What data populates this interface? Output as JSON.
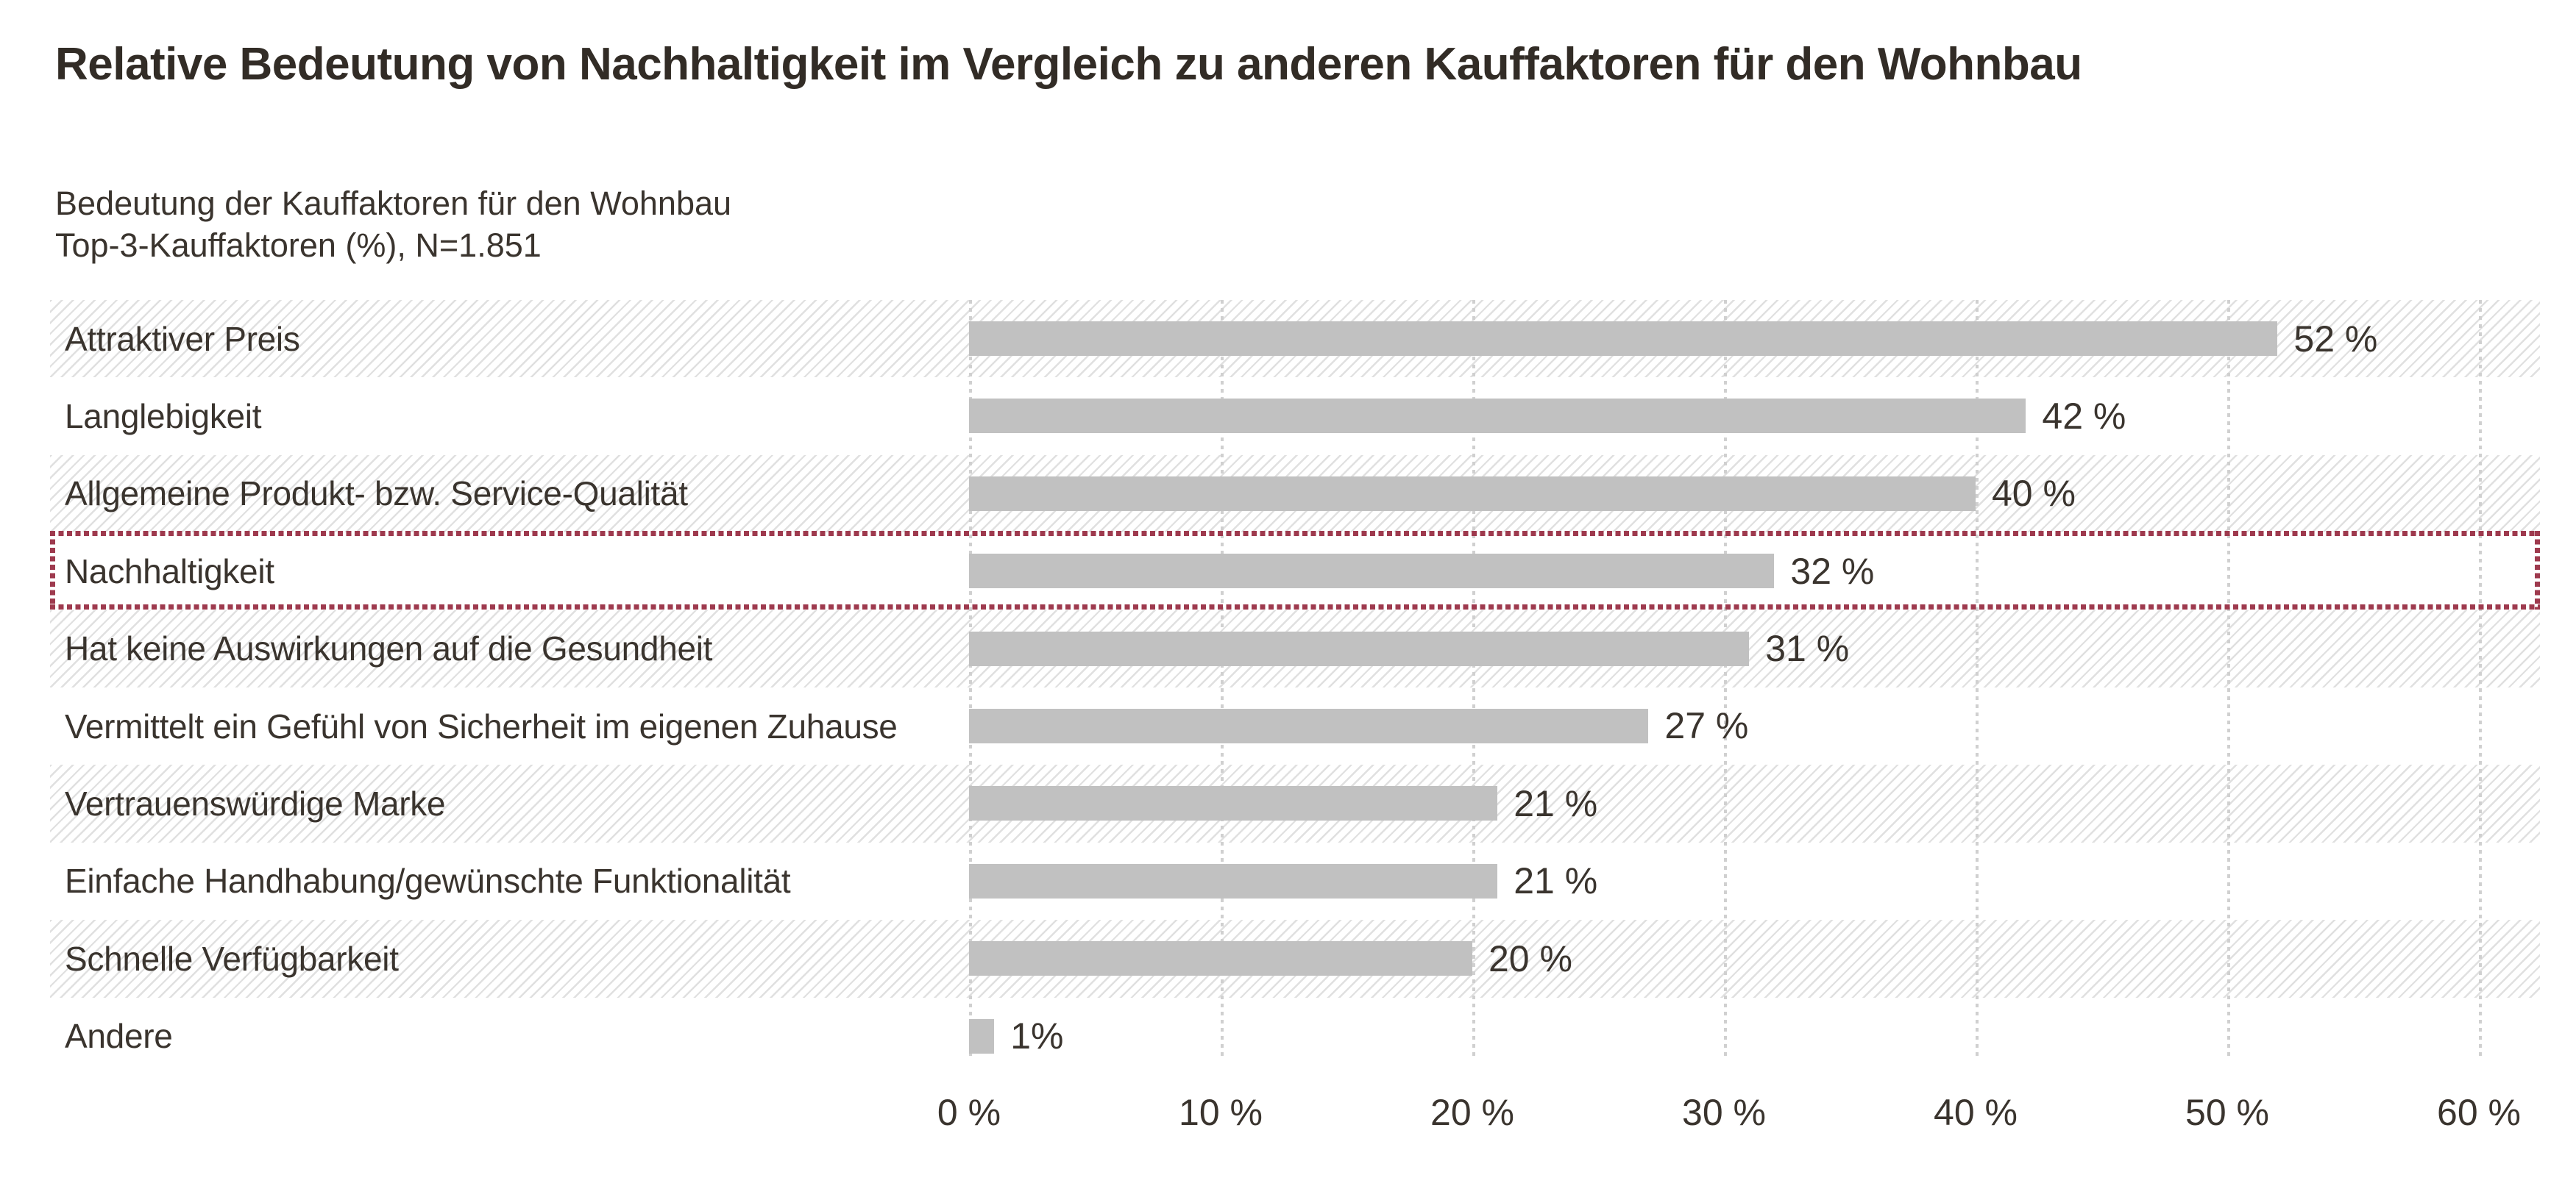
{
  "title": "Relative Bedeutung von Nachhaltigkeit im Vergleich zu anderen Kauffaktoren für den Wohnbau",
  "subtitle_line1": "Bedeutung der Kauffaktoren für den Wohnbau",
  "subtitle_line2": "Top-3-Kauffaktoren (%), N=1.851",
  "chart_data": {
    "type": "bar",
    "orientation": "horizontal",
    "categories": [
      "Attraktiver Preis",
      "Langlebigkeit",
      "Allgemeine Produkt- bzw. Service-Qualität",
      "Nachhaltigkeit",
      "Hat keine Auswirkungen auf die Gesundheit",
      "Vermittelt ein Gefühl von Sicherheit im eigenen Zuhause",
      "Vertrauenswürdige Marke",
      "Einfache Handhabung/gewünschte Funktionalität",
      "Schnelle Verfügbarkeit",
      "Andere"
    ],
    "values": [
      52,
      42,
      40,
      32,
      31,
      27,
      21,
      21,
      20,
      1
    ],
    "value_labels": [
      "52 %",
      "42 %",
      "40 %",
      "32 %",
      "31 %",
      "27 %",
      "21 %",
      "21 %",
      "20 %",
      "1%"
    ],
    "xticks": [
      0,
      10,
      20,
      30,
      40,
      50,
      60
    ],
    "xtick_labels": [
      "0 %",
      "10 %",
      "20 %",
      "30 %",
      "40 %",
      "50 %",
      "60 %"
    ],
    "xlim": [
      0,
      60
    ],
    "grid": "vertical-dotted",
    "highlighted_category": "Nachhaltigkeit",
    "highlight_index": 3,
    "legend": "none",
    "colors": {
      "bar": "#c1c1c1",
      "highlight_border": "#9e3a4e",
      "row_stripe": "#e0e0e0",
      "gridline": "#d0d0d0",
      "text": "#3a342e"
    }
  }
}
